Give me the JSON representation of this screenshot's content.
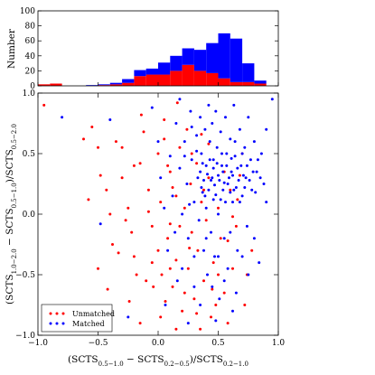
{
  "chart_data": [
    {
      "type": "bar",
      "subtype": "histogram",
      "bin_edges": [
        -1.0,
        -0.9,
        -0.8,
        -0.7,
        -0.6,
        -0.5,
        -0.4,
        -0.3,
        -0.2,
        -0.1,
        0.0,
        0.1,
        0.2,
        0.3,
        0.4,
        0.5,
        0.6,
        0.7,
        0.8,
        0.9,
        1.0
      ],
      "series": [
        {
          "name": "Matched",
          "color": "#0000ff",
          "values": [
            0,
            0,
            0,
            0,
            1,
            1,
            2,
            5,
            8,
            8,
            16,
            20,
            22,
            28,
            40,
            60,
            58,
            25,
            4,
            0
          ]
        },
        {
          "name": "Unmatched",
          "color": "#ff0000",
          "values": [
            2,
            3,
            0,
            0,
            0,
            1,
            2,
            4,
            13,
            15,
            15,
            20,
            28,
            20,
            17,
            10,
            5,
            5,
            3,
            0
          ]
        }
      ],
      "stacked": true,
      "ylabel": "Number",
      "ylim": [
        0,
        100
      ],
      "yticks": [
        "0",
        "20",
        "40",
        "60",
        "80",
        "100"
      ],
      "xlim": [
        -1.0,
        1.0
      ]
    },
    {
      "type": "scatter",
      "xlabel": "(SCTS$_{0.5-1.0}$ − SCTS$_{0.2-0.5}$)/SCTS$_{0.2-1.0}$",
      "ylabel": "(SCTS$_{1.0-2.0}$ − SCTS$_{0.5-1.0}$)/SCTS$_{0.5-2.0}$",
      "xlim": [
        -1.0,
        1.0
      ],
      "ylim": [
        -1.0,
        1.0
      ],
      "xticks": [
        "−1.0",
        "−0.5",
        "0.0",
        "0.5",
        "1.0"
      ],
      "yticks": [
        "−1.0",
        "−0.5",
        "0.0",
        "0.5",
        "1.0"
      ],
      "legend_position": "bottom-left",
      "series": [
        {
          "name": "Unmatched",
          "color": "#ff0000",
          "points": [
            [
              -0.95,
              0.9
            ],
            [
              -0.55,
              0.72
            ],
            [
              -0.5,
              0.55
            ],
            [
              -0.48,
              0.32
            ],
            [
              -0.43,
              0.2
            ],
            [
              -0.4,
              0.0
            ],
            [
              -0.38,
              -0.25
            ],
            [
              -0.5,
              -0.45
            ],
            [
              -0.62,
              0.62
            ],
            [
              -0.3,
              0.55
            ],
            [
              -0.3,
              0.3
            ],
            [
              -0.25,
              0.05
            ],
            [
              -0.22,
              -0.15
            ],
            [
              -0.2,
              -0.35
            ],
            [
              -0.18,
              -0.5
            ],
            [
              -0.15,
              0.42
            ],
            [
              -0.12,
              0.68
            ],
            [
              -0.08,
              0.2
            ],
            [
              -0.05,
              -0.1
            ],
            [
              -0.04,
              -0.6
            ],
            [
              0.0,
              0.5
            ],
            [
              0.0,
              -0.3
            ],
            [
              0.02,
              0.1
            ],
            [
              0.03,
              -0.5
            ],
            [
              0.05,
              0.62
            ],
            [
              0.08,
              -0.2
            ],
            [
              0.1,
              0.35
            ],
            [
              0.1,
              -0.08
            ],
            [
              0.12,
              -0.6
            ],
            [
              0.15,
              0.15
            ],
            [
              0.15,
              -0.38
            ],
            [
              0.18,
              0.55
            ],
            [
              0.2,
              -0.8
            ],
            [
              0.22,
              0.05
            ],
            [
              0.25,
              -0.45
            ],
            [
              0.27,
              0.25
            ],
            [
              0.28,
              -0.15
            ],
            [
              0.3,
              -0.7
            ],
            [
              0.32,
              0.42
            ],
            [
              0.33,
              -0.3
            ],
            [
              0.36,
              0.1
            ],
            [
              0.38,
              -0.55
            ],
            [
              0.4,
              -0.05
            ],
            [
              0.42,
              0.3
            ],
            [
              0.44,
              -0.85
            ],
            [
              0.46,
              -0.4
            ],
            [
              0.5,
              0.05
            ],
            [
              0.52,
              -0.2
            ],
            [
              0.55,
              -0.65
            ],
            [
              0.6,
              0.2
            ],
            [
              0.62,
              -0.45
            ],
            [
              0.65,
              -0.1
            ],
            [
              0.7,
              0.5
            ],
            [
              0.72,
              -0.75
            ],
            [
              0.78,
              -0.3
            ],
            [
              -0.1,
              -0.55
            ],
            [
              -0.35,
              0.6
            ],
            [
              -0.15,
              -0.9
            ],
            [
              0.05,
              0.78
            ],
            [
              0.15,
              -0.95
            ],
            [
              0.24,
              0.7
            ],
            [
              -0.27,
              -0.05
            ],
            [
              0.35,
              -0.95
            ],
            [
              0.48,
              -0.75
            ],
            [
              0.58,
              -0.9
            ],
            [
              0.68,
              0.32
            ],
            [
              -0.2,
              0.4
            ],
            [
              0.08,
              0.4
            ],
            [
              0.18,
              -0.1
            ],
            [
              0.28,
              0.5
            ],
            [
              -0.05,
              -0.4
            ],
            [
              0.38,
              0.2
            ],
            [
              0.45,
              -0.62
            ],
            [
              0.55,
              0.35
            ],
            [
              -0.08,
              0.02
            ],
            [
              0.12,
              0.22
            ],
            [
              0.22,
              -0.65
            ],
            [
              0.32,
              -0.82
            ],
            [
              0.02,
              -0.85
            ],
            [
              0.62,
              -0.02
            ],
            [
              0.74,
              -0.5
            ],
            [
              -0.42,
              -0.62
            ],
            [
              -0.33,
              -0.32
            ],
            [
              -0.58,
              0.12
            ],
            [
              0.42,
              0.58
            ],
            [
              0.06,
              -0.72
            ],
            [
              0.26,
              -0.28
            ],
            [
              0.36,
              0.66
            ],
            [
              -0.14,
              0.82
            ],
            [
              0.5,
              -0.5
            ],
            [
              0.58,
              -0.22
            ],
            [
              0.66,
              0.12
            ],
            [
              0.16,
              0.92
            ],
            [
              -0.24,
              -0.72
            ],
            [
              0.1,
              -0.45
            ]
          ]
        },
        {
          "name": "Matched",
          "color": "#0000ff",
          "points": [
            [
              -0.8,
              0.8
            ],
            [
              -0.05,
              0.88
            ],
            [
              0.0,
              0.6
            ],
            [
              0.02,
              0.3
            ],
            [
              0.05,
              0.05
            ],
            [
              0.08,
              -0.3
            ],
            [
              0.1,
              0.48
            ],
            [
              0.12,
              0.15
            ],
            [
              0.14,
              -0.15
            ],
            [
              0.15,
              0.75
            ],
            [
              0.18,
              0.38
            ],
            [
              0.2,
              0.0
            ],
            [
              0.2,
              -0.45
            ],
            [
              0.22,
              0.6
            ],
            [
              0.24,
              0.25
            ],
            [
              0.25,
              -0.2
            ],
            [
              0.27,
              0.85
            ],
            [
              0.28,
              0.45
            ],
            [
              0.3,
              0.1
            ],
            [
              0.3,
              -0.6
            ],
            [
              0.32,
              0.65
            ],
            [
              0.33,
              0.3
            ],
            [
              0.34,
              -0.05
            ],
            [
              0.35,
              0.8
            ],
            [
              0.36,
              0.5
            ],
            [
              0.37,
              0.18
            ],
            [
              0.38,
              -0.3
            ],
            [
              0.39,
              0.7
            ],
            [
              0.4,
              0.4
            ],
            [
              0.4,
              0.05
            ],
            [
              0.41,
              -0.5
            ],
            [
              0.42,
              0.9
            ],
            [
              0.43,
              0.6
            ],
            [
              0.44,
              0.28
            ],
            [
              0.44,
              -0.15
            ],
            [
              0.45,
              0.75
            ],
            [
              0.46,
              0.45
            ],
            [
              0.46,
              0.12
            ],
            [
              0.47,
              -0.35
            ],
            [
              0.48,
              0.85
            ],
            [
              0.49,
              0.55
            ],
            [
              0.5,
              0.32
            ],
            [
              0.5,
              0.0
            ],
            [
              0.51,
              -0.7
            ],
            [
              0.52,
              0.68
            ],
            [
              0.53,
              0.4
            ],
            [
              0.54,
              0.2
            ],
            [
              0.55,
              -0.2
            ],
            [
              0.56,
              0.8
            ],
            [
              0.57,
              0.5
            ],
            [
              0.58,
              0.25
            ],
            [
              0.58,
              -0.45
            ],
            [
              0.6,
              0.62
            ],
            [
              0.61,
              0.35
            ],
            [
              0.62,
              0.1
            ],
            [
              0.63,
              0.9
            ],
            [
              0.64,
              0.48
            ],
            [
              0.65,
              0.22
            ],
            [
              0.66,
              -0.3
            ],
            [
              0.68,
              0.7
            ],
            [
              0.69,
              0.4
            ],
            [
              0.7,
              0.15
            ],
            [
              0.72,
              0.55
            ],
            [
              0.73,
              0.3
            ],
            [
              0.74,
              -0.1
            ],
            [
              0.75,
              0.8
            ],
            [
              0.77,
              0.45
            ],
            [
              0.78,
              0.2
            ],
            [
              0.8,
              0.6
            ],
            [
              0.82,
              0.35
            ],
            [
              0.84,
              -0.4
            ],
            [
              0.86,
              0.5
            ],
            [
              0.88,
              0.25
            ],
            [
              0.9,
              0.7
            ],
            [
              0.35,
              0.35
            ],
            [
              0.36,
              0.22
            ],
            [
              0.37,
              0.42
            ],
            [
              0.38,
              0.28
            ],
            [
              0.39,
              0.15
            ],
            [
              0.41,
              0.33
            ],
            [
              0.42,
              0.2
            ],
            [
              0.43,
              0.45
            ],
            [
              0.45,
              0.3
            ],
            [
              0.46,
              0.38
            ],
            [
              0.47,
              0.24
            ],
            [
              0.48,
              0.16
            ],
            [
              0.49,
              0.42
            ],
            [
              0.51,
              0.28
            ],
            [
              0.52,
              0.12
            ],
            [
              0.53,
              0.5
            ],
            [
              0.54,
              0.35
            ],
            [
              0.55,
              0.26
            ],
            [
              0.56,
              0.1
            ],
            [
              0.57,
              0.4
            ],
            [
              0.59,
              0.3
            ],
            [
              0.6,
              0.18
            ],
            [
              0.61,
              0.46
            ],
            [
              0.62,
              0.32
            ],
            [
              0.63,
              0.2
            ],
            [
              0.64,
              0.6
            ],
            [
              0.66,
              0.38
            ],
            [
              0.67,
              0.28
            ],
            [
              0.68,
              0.1
            ],
            [
              0.7,
              0.5
            ],
            [
              0.71,
              0.32
            ],
            [
              0.72,
              0.22
            ],
            [
              0.74,
              0.4
            ],
            [
              0.76,
              0.28
            ],
            [
              0.79,
              0.35
            ],
            [
              0.81,
              0.18
            ],
            [
              0.83,
              0.45
            ],
            [
              0.85,
              0.3
            ],
            [
              0.4,
              -0.2
            ],
            [
              0.45,
              -0.6
            ],
            [
              0.5,
              -0.35
            ],
            [
              0.55,
              -0.55
            ],
            [
              0.6,
              -0.15
            ],
            [
              0.65,
              -0.65
            ],
            [
              0.7,
              -0.35
            ],
            [
              0.75,
              -0.5
            ],
            [
              0.3,
              -0.35
            ],
            [
              0.35,
              -0.75
            ],
            [
              0.25,
              -0.9
            ],
            [
              0.48,
              -0.88
            ],
            [
              0.62,
              -0.8
            ],
            [
              0.8,
              -0.2
            ],
            [
              0.9,
              0.1
            ],
            [
              0.95,
              0.95
            ],
            [
              -0.4,
              0.78
            ],
            [
              -0.25,
              -0.85
            ],
            [
              -0.48,
              -0.08
            ],
            [
              0.18,
              0.95
            ],
            [
              0.28,
              0.72
            ],
            [
              0.22,
              0.48
            ],
            [
              0.32,
              0.52
            ],
            [
              0.26,
              0.08
            ],
            [
              0.16,
              -0.55
            ],
            [
              0.06,
              -0.75
            ]
          ]
        }
      ]
    }
  ]
}
